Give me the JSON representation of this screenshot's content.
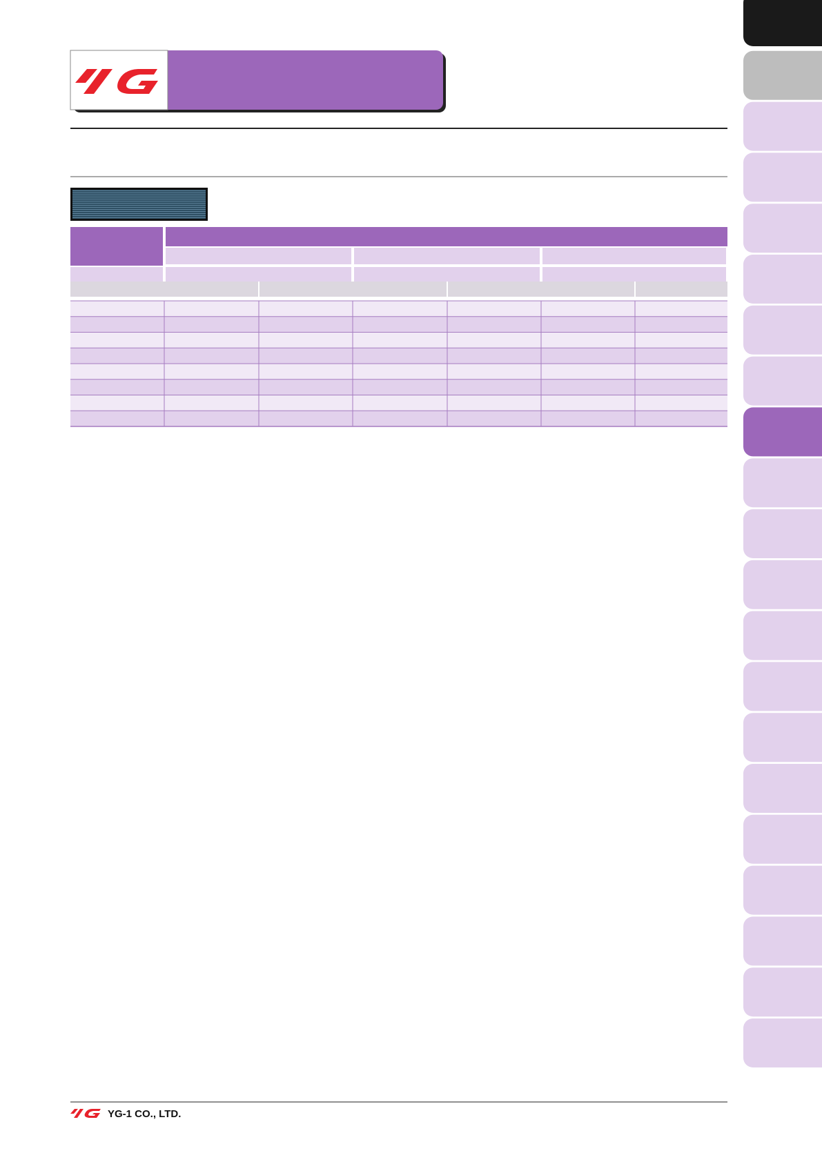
{
  "footer": {
    "company": "YG-1 CO., LTD."
  }
}
